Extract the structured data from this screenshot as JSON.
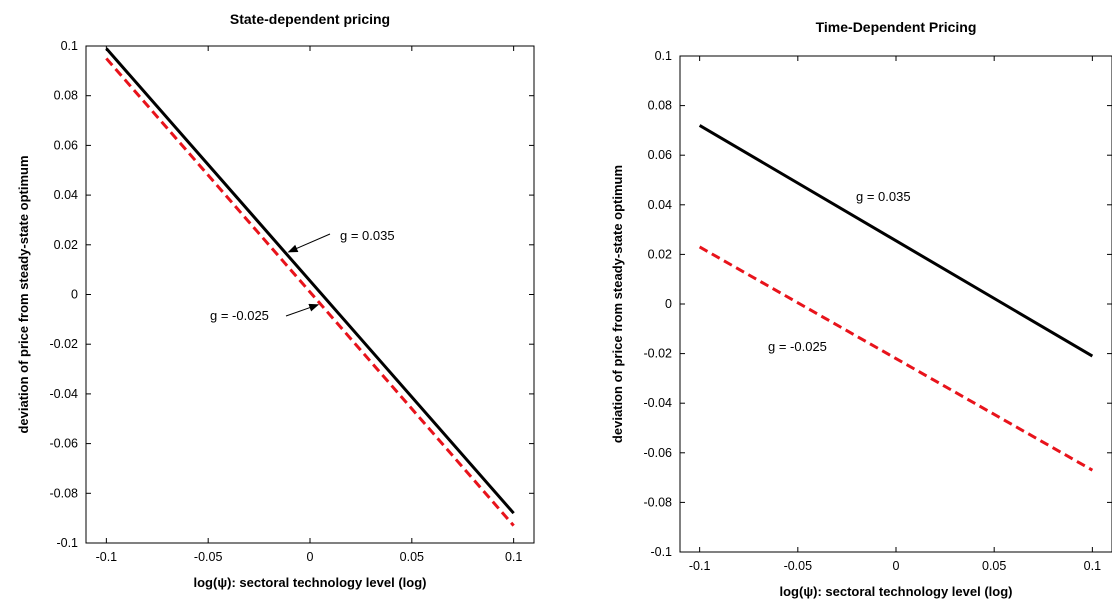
{
  "chart_data": [
    {
      "type": "line",
      "title": "State-dependent pricing",
      "xlabel": "log(ψ): sectoral technology level (log)",
      "ylabel": "deviation of price from steady-state optimum",
      "xlim": [
        -0.11,
        0.11
      ],
      "ylim": [
        -0.1,
        0.1
      ],
      "xticks": [
        -0.1,
        -0.05,
        0,
        0.05,
        0.1
      ],
      "xtick_labels": [
        "-0.1",
        "-0.05",
        "0",
        "0.05",
        "0.1"
      ],
      "yticks": [
        -0.1,
        -0.08,
        -0.06,
        -0.04,
        -0.02,
        0,
        0.02,
        0.04,
        0.06,
        0.08,
        0.1
      ],
      "ytick_labels": [
        "-0.1",
        "-0.08",
        "-0.06",
        "-0.04",
        "-0.02",
        "0",
        "0.02",
        "0.04",
        "0.06",
        "0.08",
        "0.1"
      ],
      "grid": false,
      "series": [
        {
          "name": "g = 0.035",
          "color": "#000000",
          "dash": "solid",
          "x": [
            -0.1,
            0.1
          ],
          "y": [
            0.099,
            -0.088
          ]
        },
        {
          "name": "g = -0.025",
          "color": "#e8131b",
          "dash": "dashed",
          "x": [
            -0.1,
            0.1
          ],
          "y": [
            0.095,
            -0.093
          ]
        }
      ],
      "annotations": [
        {
          "text": "g = 0.035",
          "series": 0,
          "arrow": true,
          "target_x": -0.012
        },
        {
          "text": "g = -0.025",
          "series": 1,
          "arrow": true,
          "target_x": 0.005
        }
      ]
    },
    {
      "type": "line",
      "title": "Time-Dependent Pricing",
      "xlabel": "log(ψ): sectoral technology level (log)",
      "ylabel": "deviation of price from steady-state optimum",
      "xlim": [
        -0.11,
        0.11
      ],
      "ylim": [
        -0.1,
        0.1
      ],
      "xticks": [
        -0.1,
        -0.05,
        0,
        0.05,
        0.1
      ],
      "xtick_labels": [
        "-0.1",
        "-0.05",
        "0",
        "0.05",
        "0.1"
      ],
      "yticks": [
        -0.1,
        -0.08,
        -0.06,
        -0.04,
        -0.02,
        0,
        0.02,
        0.04,
        0.06,
        0.08,
        0.1
      ],
      "ytick_labels": [
        "-0.1",
        "-0.08",
        "-0.06",
        "-0.04",
        "-0.02",
        "0",
        "0.02",
        "0.04",
        "0.06",
        "0.08",
        "0.1"
      ],
      "grid": false,
      "series": [
        {
          "name": "g = 0.035",
          "color": "#000000",
          "dash": "solid",
          "x": [
            -0.1,
            0.1
          ],
          "y": [
            0.072,
            -0.021
          ]
        },
        {
          "name": "g = -0.025",
          "color": "#e8131b",
          "dash": "dashed",
          "x": [
            -0.1,
            0.1
          ],
          "y": [
            0.023,
            -0.067
          ]
        }
      ],
      "annotations": [
        {
          "text": "g = 0.035",
          "series": 0,
          "arrow": false
        },
        {
          "text": "g = -0.025",
          "series": 1,
          "arrow": false
        }
      ]
    }
  ]
}
